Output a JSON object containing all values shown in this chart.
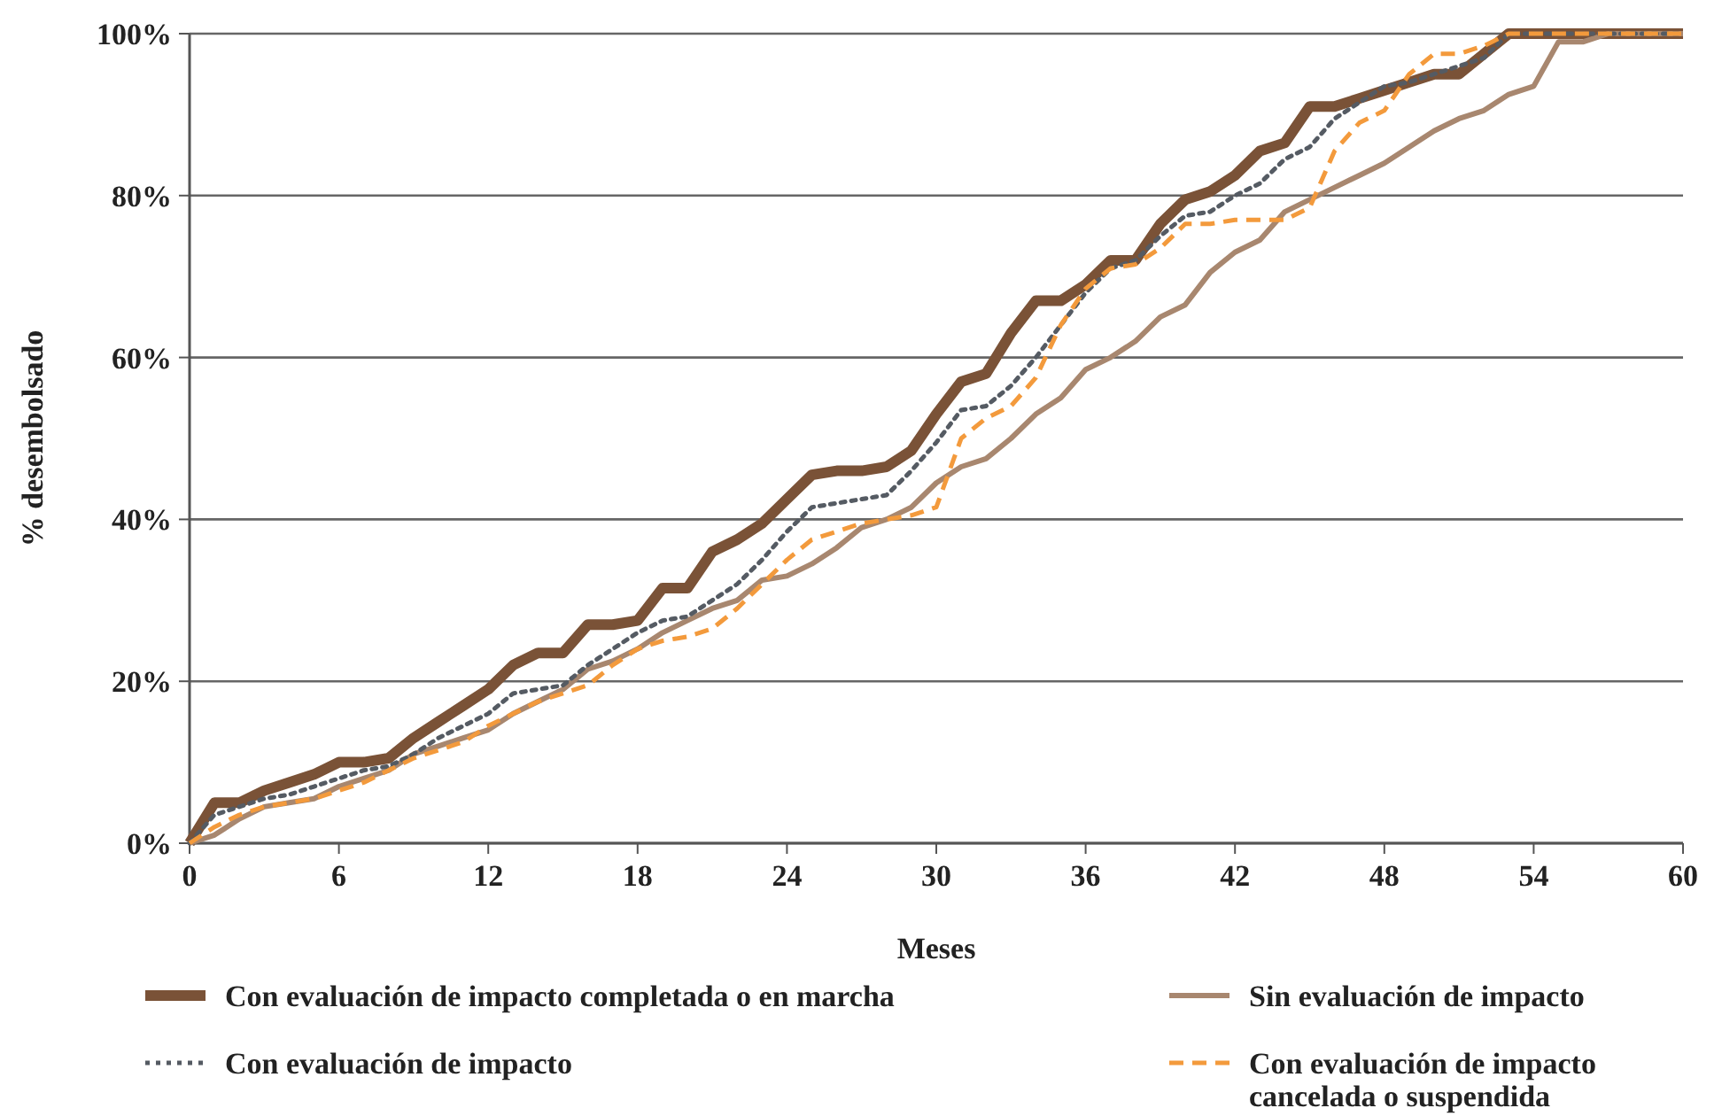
{
  "chart_data": {
    "type": "line",
    "xlabel": "Meses",
    "ylabel": "% desembolsado",
    "xlim": [
      0,
      60
    ],
    "xticks": [
      0,
      6,
      12,
      18,
      24,
      30,
      36,
      42,
      48,
      54,
      60
    ],
    "ylim": [
      0,
      100
    ],
    "yticks": [
      {
        "value": 0,
        "label": "0%"
      },
      {
        "value": 20,
        "label": "20%"
      },
      {
        "value": 40,
        "label": "40%"
      },
      {
        "value": 60,
        "label": "60%"
      },
      {
        "value": 80,
        "label": "80%"
      },
      {
        "value": 100,
        "label": "100%"
      }
    ],
    "grid": "y",
    "legend": "bottom",
    "marker": "none",
    "x": [
      0,
      1,
      2,
      3,
      4,
      5,
      6,
      7,
      8,
      9,
      10,
      11,
      12,
      13,
      14,
      15,
      16,
      17,
      18,
      19,
      20,
      21,
      22,
      23,
      24,
      25,
      26,
      27,
      28,
      29,
      30,
      31,
      32,
      33,
      34,
      35,
      36,
      37,
      38,
      39,
      40,
      41,
      42,
      43,
      44,
      45,
      46,
      47,
      48,
      49,
      50,
      51,
      52,
      53,
      54,
      55,
      56,
      57,
      58,
      59,
      60
    ],
    "series": [
      {
        "name": "Con evaluación de impacto completada o en marcha",
        "color": "#7a5237",
        "line_style": "solid",
        "values": [
          0,
          5,
          5,
          6.5,
          7.5,
          8.5,
          10,
          10,
          10.5,
          13,
          15,
          17,
          19,
          22,
          23.5,
          23.5,
          27,
          27,
          27.5,
          31.5,
          31.5,
          36,
          37.5,
          39.5,
          42.5,
          45.5,
          46,
          46,
          46.5,
          48.5,
          53,
          57,
          58,
          63,
          67,
          67,
          69,
          72,
          72,
          76.5,
          79.5,
          80.5,
          82.5,
          85.5,
          86.5,
          91,
          91,
          92,
          93,
          94,
          95,
          95,
          97.5,
          100,
          100,
          100,
          100,
          100,
          100,
          100,
          100
        ]
      },
      {
        "name": "Sin evaluación de impacto",
        "color": "#a8876f",
        "line_style": "solid",
        "values": [
          0,
          1,
          3,
          4.5,
          5,
          5.5,
          7,
          8,
          9,
          11,
          12,
          13,
          14,
          16,
          17.5,
          19,
          21.5,
          22.5,
          24,
          26,
          27.5,
          29,
          30,
          32.5,
          33,
          34.5,
          36.5,
          39,
          40,
          41.5,
          44.5,
          46.5,
          47.5,
          50,
          53,
          55,
          58.5,
          60,
          62,
          65,
          66.5,
          70.5,
          73,
          74.5,
          78,
          79.5,
          81,
          82.5,
          84,
          86,
          88,
          89.5,
          90.5,
          92.5,
          93.5,
          99,
          99,
          100,
          100,
          100,
          100
        ]
      },
      {
        "name": "Con evaluación de impacto",
        "color": "#555b63",
        "line_style": "dotted",
        "values": [
          0,
          3.5,
          4.5,
          5.5,
          6,
          7,
          8,
          9,
          9.5,
          11,
          13,
          14.5,
          16,
          18.5,
          19,
          19.5,
          22,
          24,
          26,
          27.5,
          28,
          30,
          32,
          35,
          38.5,
          41.5,
          42,
          42.5,
          43,
          46,
          49.5,
          53.5,
          54,
          56.5,
          60,
          64,
          68,
          71,
          72,
          75,
          77.5,
          78,
          80,
          81.5,
          84.5,
          86,
          89.5,
          91.5,
          93.5,
          94,
          95,
          96,
          97,
          100,
          100,
          100,
          100,
          100,
          100,
          100,
          100
        ]
      },
      {
        "name": "Con evaluación de impacto cancelada o suspendida",
        "color": "#f39a3c",
        "line_style": "dashed",
        "values": [
          0,
          2,
          3.5,
          4.5,
          5,
          5.5,
          6.5,
          7.5,
          9,
          10.5,
          11.5,
          12.5,
          14.5,
          16,
          17.5,
          18.5,
          19.5,
          22,
          24,
          25,
          25.5,
          26.5,
          29,
          32,
          35,
          37.5,
          38.5,
          39.5,
          40,
          40.5,
          41.5,
          50,
          52.5,
          54,
          57.5,
          64,
          68.5,
          71,
          71.5,
          73.5,
          76.5,
          76.5,
          77,
          77,
          77,
          78.5,
          85.5,
          89,
          90.5,
          95,
          97.5,
          97.5,
          98.5,
          100,
          100,
          100,
          100,
          100,
          100,
          100,
          100
        ]
      }
    ]
  }
}
